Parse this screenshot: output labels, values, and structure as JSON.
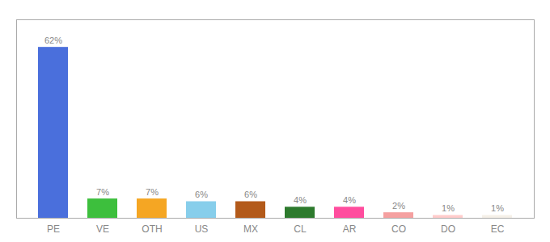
{
  "chart_data": {
    "type": "bar",
    "categories": [
      "PE",
      "VE",
      "OTH",
      "US",
      "MX",
      "CL",
      "AR",
      "CO",
      "DO",
      "EC"
    ],
    "values": [
      62,
      7,
      7,
      6,
      6,
      4,
      4,
      2,
      1,
      1
    ],
    "value_labels": [
      "62%",
      "7%",
      "7%",
      "6%",
      "6%",
      "4%",
      "4%",
      "2%",
      "1%",
      "1%"
    ],
    "colors": [
      "#4a6fdc",
      "#3dbf3d",
      "#f5a623",
      "#87ceeb",
      "#b35a1a",
      "#2d7a2d",
      "#ff4d9e",
      "#f5a0a0",
      "#ffcccb",
      "#f5f0e8"
    ],
    "ylim": [
      0,
      72
    ],
    "data_labels": true,
    "tick_labels": "x",
    "grid": false
  }
}
